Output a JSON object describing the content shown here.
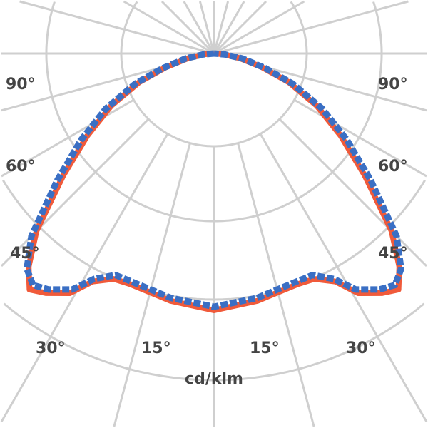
{
  "chart_data": {
    "type": "line",
    "subtype": "polar",
    "unit_label": "cd/klm",
    "angle_labels": {
      "left": [
        "90°",
        "60°",
        "45°",
        "30°",
        "15°"
      ],
      "right": [
        "90°",
        "60°",
        "45°",
        "30°",
        "15°"
      ]
    },
    "angles": [
      0,
      10,
      20,
      24,
      28,
      31,
      35,
      38,
      41,
      45,
      51,
      57,
      63,
      69,
      74,
      80,
      85,
      90
    ],
    "series": [
      {
        "color": "#3a6fc4",
        "values": [
          355,
          348,
          340,
          340,
          358,
          386,
          404,
          412,
          400,
          362,
          283,
          222,
          170,
          118,
          75,
          40,
          15,
          0
        ]
      },
      {
        "color": "#f05a3a",
        "values": [
          360,
          352,
          344,
          346,
          362,
          392,
          410,
          420,
          396,
          352,
          272,
          212,
          162,
          112,
          70,
          36,
          13,
          0
        ]
      }
    ],
    "grid": true,
    "legend": "none"
  }
}
